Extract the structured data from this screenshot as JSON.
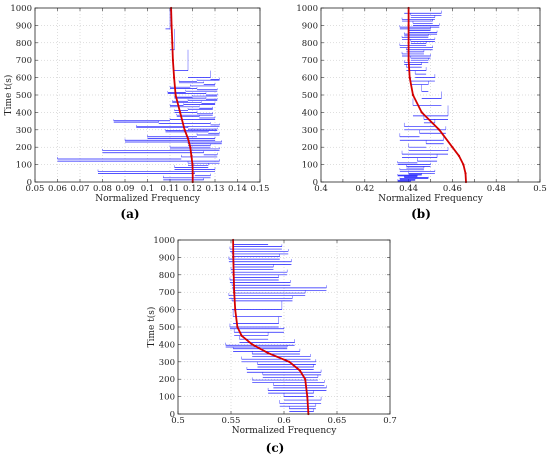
{
  "figure": {
    "background": "#ffffff"
  },
  "chart_data": [
    {
      "id": "a",
      "type": "line",
      "panel_label": "(a)",
      "xlabel": "Normalized Frequency",
      "ylabel": "Time t(s)",
      "xlim": [
        0.05,
        0.15
      ],
      "ylim": [
        0,
        1000
      ],
      "xticks": [
        "0.05",
        "0.06",
        "0.07",
        "0.08",
        "0.09",
        "0.1",
        "0.11",
        "0.12",
        "0.13",
        "0.14",
        "0.15"
      ],
      "yticks": [
        "0",
        "100",
        "200",
        "300",
        "400",
        "500",
        "600",
        "700",
        "800",
        "900",
        "1000"
      ],
      "grid": true,
      "series": [
        {
          "role": "estimate",
          "color": "#1a1aff",
          "x": [
            0.108,
            0.11,
            0.112,
            0.118,
            0.128,
            0.132,
            0.122,
            0.114,
            0.125,
            0.13,
            0.119,
            0.11,
            0.122,
            0.131,
            0.117,
            0.109,
            0.126,
            0.131,
            0.12,
            0.112,
            0.126,
            0.131,
            0.118,
            0.111,
            0.124,
            0.13,
            0.116,
            0.11,
            0.123,
            0.129,
            0.118,
            0.112,
            0.122,
            0.129,
            0.113,
            0.123,
            0.13,
            0.11,
            0.085,
            0.105,
            0.128,
            0.132,
            0.095,
            0.118,
            0.131,
            0.108,
            0.127,
            0.132,
            0.122,
            0.1,
            0.13,
            0.09,
            0.133,
            0.118,
            0.128,
            0.11,
            0.132,
            0.08,
            0.125,
            0.131,
            0.115,
            0.06,
            0.132,
            0.118,
            0.127,
            0.112,
            0.13,
            0.078,
            0.121,
            0.128,
            0.107,
            0.125
          ],
          "y": [
            1000,
            880,
            760,
            640,
            600,
            590,
            585,
            578,
            570,
            560,
            552,
            545,
            538,
            530,
            522,
            515,
            508,
            500,
            494,
            488,
            482,
            476,
            470,
            464,
            458,
            452,
            446,
            440,
            432,
            424,
            418,
            410,
            400,
            392,
            384,
            376,
            368,
            360,
            352,
            344,
            336,
            328,
            320,
            312,
            304,
            296,
            288,
            280,
            270,
            260,
            250,
            240,
            230,
            220,
            210,
            200,
            190,
            180,
            168,
            156,
            144,
            132,
            120,
            108,
            96,
            84,
            72,
            60,
            48,
            36,
            24,
            12
          ]
        },
        {
          "role": "smoothed",
          "color": "#d40000",
          "x": [
            0.1105,
            0.1107,
            0.111,
            0.1113,
            0.1118,
            0.1125,
            0.1145,
            0.1165,
            0.118,
            0.119,
            0.1195,
            0.12,
            0.1201,
            0.1201
          ],
          "y": [
            1000,
            900,
            800,
            700,
            600,
            500,
            400,
            300,
            250,
            200,
            150,
            100,
            50,
            0
          ]
        }
      ]
    },
    {
      "id": "b",
      "type": "line",
      "panel_label": "(b)",
      "xlabel": "Normalized Frequency",
      "ylabel": "",
      "xlim": [
        0.4,
        0.5
      ],
      "ylim": [
        0,
        1000
      ],
      "xticks": [
        "0.4",
        "",
        "0.42",
        "",
        "0.44",
        "",
        "0.46",
        "",
        "0.48",
        "",
        "0.5"
      ],
      "yticks": [
        "0",
        "100",
        "200",
        "300",
        "400",
        "500",
        "600",
        "700",
        "800",
        "900",
        "1000"
      ],
      "grid": true,
      "series": [
        {
          "role": "estimate",
          "color": "#1a1aff",
          "x": [
            0.438,
            0.455,
            0.441,
            0.452,
            0.437,
            0.451,
            0.442,
            0.454,
            0.436,
            0.45,
            0.44,
            0.453,
            0.438,
            0.449,
            0.437,
            0.452,
            0.441,
            0.448,
            0.436,
            0.451,
            0.439,
            0.447,
            0.437,
            0.45,
            0.441,
            0.449,
            0.438,
            0.446,
            0.439,
            0.448,
            0.443,
            0.452,
            0.441,
            0.449,
            0.446,
            0.455,
            0.442,
            0.458,
            0.447,
            0.452,
            0.438,
            0.457,
            0.445,
            0.436,
            0.456,
            0.448,
            0.44,
            0.458,
            0.437,
            0.453,
            0.444,
            0.435,
            0.45,
            0.439,
            0.447,
            0.436,
            0.452,
            0.44,
            0.446,
            0.435,
            0.444,
            0.438,
            0.449,
            0.436,
            0.443,
            0.435,
            0.441
          ],
          "y": [
            985,
            970,
            958,
            945,
            935,
            925,
            912,
            900,
            890,
            880,
            870,
            860,
            850,
            840,
            830,
            820,
            808,
            796,
            784,
            772,
            760,
            748,
            736,
            724,
            712,
            700,
            688,
            676,
            660,
            640,
            620,
            600,
            580,
            560,
            520,
            480,
            440,
            380,
            360,
            340,
            320,
            300,
            280,
            260,
            240,
            220,
            200,
            180,
            160,
            140,
            120,
            110,
            100,
            90,
            80,
            70,
            60,
            50,
            45,
            40,
            35,
            30,
            25,
            20,
            15,
            10,
            5
          ]
        },
        {
          "role": "smoothed",
          "color": "#d40000",
          "x": [
            0.44,
            0.44,
            0.44,
            0.44,
            0.4405,
            0.442,
            0.446,
            0.454,
            0.46,
            0.463,
            0.465,
            0.466,
            0.4662
          ],
          "y": [
            1000,
            900,
            800,
            700,
            600,
            500,
            400,
            300,
            200,
            150,
            100,
            50,
            0
          ]
        }
      ]
    },
    {
      "id": "c",
      "type": "line",
      "panel_label": "(c)",
      "xlabel": "Normalized Frequency",
      "ylabel": "Time t(s)",
      "xlim": [
        0.5,
        0.7
      ],
      "ylim": [
        0,
        1000
      ],
      "xticks": [
        "0.5",
        "0.55",
        "0.6",
        "0.65",
        "0.7"
      ],
      "yticks": [
        "0",
        "100",
        "200",
        "300",
        "400",
        "500",
        "600",
        "700",
        "800",
        "900",
        "1000"
      ],
      "grid": true,
      "series": [
        {
          "role": "estimate",
          "color": "#1a1aff",
          "x": [
            0.585,
            0.552,
            0.598,
            0.549,
            0.604,
            0.551,
            0.596,
            0.548,
            0.607,
            0.553,
            0.59,
            0.55,
            0.603,
            0.552,
            0.595,
            0.549,
            0.606,
            0.551,
            0.64,
            0.552,
            0.62,
            0.548,
            0.608,
            0.551,
            0.598,
            0.552,
            0.595,
            0.549,
            0.6,
            0.553,
            0.585,
            0.558,
            0.61,
            0.545,
            0.603,
            0.552,
            0.615,
            0.57,
            0.625,
            0.56,
            0.63,
            0.575,
            0.628,
            0.565,
            0.635,
            0.58,
            0.632,
            0.57,
            0.638,
            0.59,
            0.64,
            0.585,
            0.628,
            0.6,
            0.635,
            0.596,
            0.63,
            0.605,
            0.628
          ],
          "y": [
            990,
            975,
            962,
            948,
            935,
            920,
            905,
            890,
            875,
            860,
            845,
            830,
            815,
            800,
            785,
            770,
            755,
            740,
            725,
            710,
            695,
            680,
            665,
            650,
            600,
            560,
            520,
            500,
            490,
            470,
            450,
            430,
            410,
            395,
            385,
            375,
            360,
            345,
            330,
            315,
            300,
            285,
            270,
            255,
            240,
            225,
            210,
            195,
            180,
            165,
            150,
            135,
            120,
            100,
            80,
            60,
            45,
            30,
            15
          ]
        },
        {
          "role": "smoothed",
          "color": "#d40000",
          "x": [
            0.552,
            0.5522,
            0.5525,
            0.553,
            0.554,
            0.556,
            0.56,
            0.57,
            0.585,
            0.605,
            0.615,
            0.62,
            0.622,
            0.623
          ],
          "y": [
            1000,
            900,
            800,
            700,
            600,
            500,
            450,
            400,
            350,
            300,
            250,
            200,
            100,
            0
          ]
        }
      ]
    }
  ]
}
